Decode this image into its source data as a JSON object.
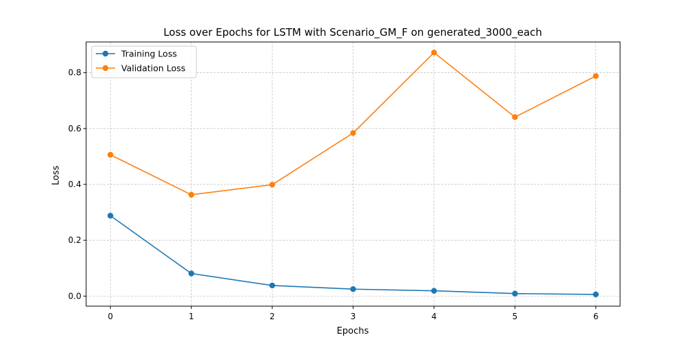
{
  "chart_data": {
    "type": "line",
    "title": "Loss over Epochs for LSTM with Scenario_GM_F on generated_3000_each",
    "xlabel": "Epochs",
    "ylabel": "Loss",
    "x": [
      0,
      1,
      2,
      3,
      4,
      5,
      6
    ],
    "xlim": [
      -0.3,
      6.3
    ],
    "ylim": [
      -0.036,
      0.91
    ],
    "xticks": [
      0,
      1,
      2,
      3,
      4,
      5,
      6
    ],
    "xtick_labels": [
      "0",
      "1",
      "2",
      "3",
      "4",
      "5",
      "6"
    ],
    "yticks": [
      0.0,
      0.2,
      0.4,
      0.6,
      0.8
    ],
    "ytick_labels": [
      "0.0",
      "0.2",
      "0.4",
      "0.6",
      "0.8"
    ],
    "grid": true,
    "legend_position": "top-left",
    "series": [
      {
        "name": "Training Loss",
        "color": "#1f77b4",
        "values": [
          0.288,
          0.081,
          0.038,
          0.025,
          0.019,
          0.009,
          0.006
        ]
      },
      {
        "name": "Validation Loss",
        "color": "#ff7f0e",
        "values": [
          0.506,
          0.363,
          0.399,
          0.584,
          0.872,
          0.641,
          0.788
        ]
      }
    ]
  }
}
